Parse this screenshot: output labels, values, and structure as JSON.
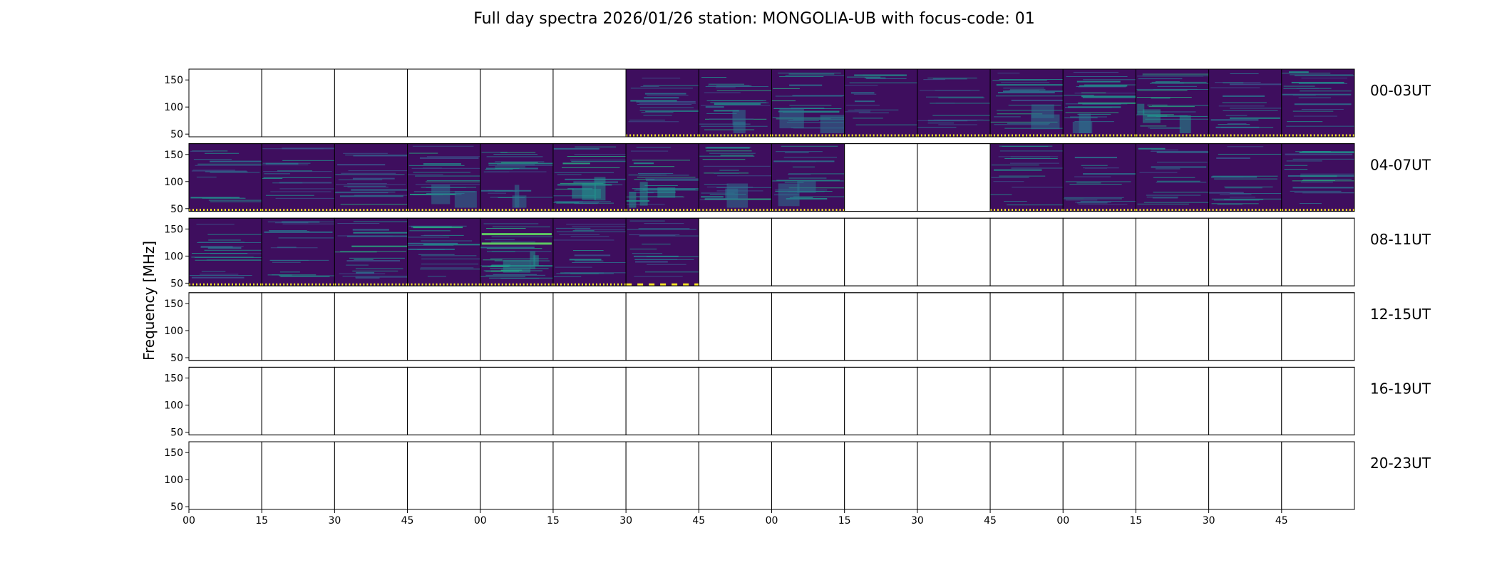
{
  "chart_data": {
    "type": "heatmap",
    "title": "Full day spectra 2026/01/26 station: MONGOLIA-UB with focus-code: 01",
    "ylabel": "Frequency [MHz]",
    "xlabel": "",
    "ylim": [
      45,
      170
    ],
    "yticks": [
      "50",
      "100",
      "150"
    ],
    "xticks": [
      "00",
      "15",
      "30",
      "45",
      "00",
      "15",
      "30",
      "45",
      "00",
      "15",
      "30",
      "45",
      "00",
      "15",
      "30",
      "45"
    ],
    "colormap": "viridis",
    "colors": {
      "cmap": [
        "#440154",
        "#472d7b",
        "#3b528b",
        "#2c728e",
        "#21918c",
        "#28ae80",
        "#5ec962",
        "#addc30",
        "#fde725"
      ],
      "background": "#3e0e5e",
      "panel_edge": "#000000"
    },
    "rows": [
      {
        "label": "00-03UT",
        "filled": [
          false,
          false,
          false,
          false,
          false,
          false,
          true,
          true,
          true,
          true,
          true,
          true,
          true,
          true,
          true,
          true
        ],
        "activity": [
          0,
          0,
          0,
          0,
          0,
          0,
          0.35,
          0.55,
          0.6,
          0.3,
          0.3,
          0.5,
          0.6,
          0.75,
          0.3,
          0.45
        ],
        "marker_style": "dotted"
      },
      {
        "label": "04-07UT",
        "filled": [
          true,
          true,
          true,
          true,
          true,
          true,
          true,
          true,
          true,
          false,
          false,
          true,
          true,
          true,
          true,
          true
        ],
        "activity": [
          0.35,
          0.3,
          0.45,
          0.5,
          0.5,
          0.7,
          0.65,
          0.55,
          0.5,
          0,
          0,
          0.3,
          0.3,
          0.3,
          0.35,
          0.45
        ],
        "marker_style": "dotted"
      },
      {
        "label": "08-11UT",
        "filled": [
          true,
          true,
          true,
          true,
          true,
          true,
          true,
          false,
          false,
          false,
          false,
          false,
          false,
          false,
          false,
          false
        ],
        "activity": [
          0.4,
          0.35,
          0.45,
          0.45,
          0.85,
          0.45,
          0.35,
          0,
          0,
          0,
          0,
          0,
          0,
          0,
          0,
          0
        ],
        "marker_style": "dotted",
        "dashed_panels": [
          6
        ]
      },
      {
        "label": "12-15UT",
        "filled": [
          false,
          false,
          false,
          false,
          false,
          false,
          false,
          false,
          false,
          false,
          false,
          false,
          false,
          false,
          false,
          false
        ],
        "activity": [
          0,
          0,
          0,
          0,
          0,
          0,
          0,
          0,
          0,
          0,
          0,
          0,
          0,
          0,
          0,
          0
        ]
      },
      {
        "label": "16-19UT",
        "filled": [
          false,
          false,
          false,
          false,
          false,
          false,
          false,
          false,
          false,
          false,
          false,
          false,
          false,
          false,
          false,
          false
        ],
        "activity": [
          0,
          0,
          0,
          0,
          0,
          0,
          0,
          0,
          0,
          0,
          0,
          0,
          0,
          0,
          0,
          0
        ]
      },
      {
        "label": "20-23UT",
        "filled": [
          false,
          false,
          false,
          false,
          false,
          false,
          false,
          false,
          false,
          false,
          false,
          false,
          false,
          false,
          false,
          false
        ],
        "activity": [
          0,
          0,
          0,
          0,
          0,
          0,
          0,
          0,
          0,
          0,
          0,
          0,
          0,
          0,
          0,
          0
        ]
      }
    ]
  }
}
